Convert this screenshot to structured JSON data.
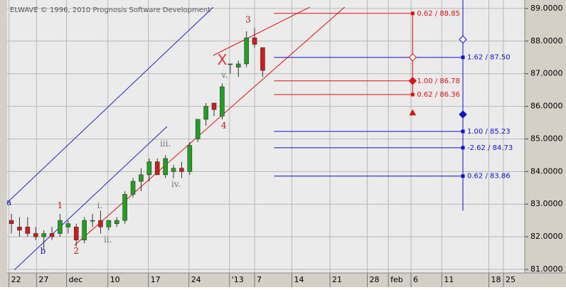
{
  "chart_data": {
    "type": "candlestick",
    "title": "ELWAVE © 1996, 2010 Prognosis Software Development",
    "x": [
      0,
      1,
      2,
      3,
      4,
      5,
      6,
      7,
      8,
      9,
      10,
      11,
      12,
      13,
      14,
      15,
      16,
      17,
      18,
      19,
      20,
      21,
      22,
      23,
      24,
      25,
      26,
      27,
      28,
      29,
      30,
      31
    ],
    "open": [
      82.5,
      82.3,
      82.3,
      82.1,
      82.0,
      82.1,
      82.1,
      82.3,
      82.3,
      81.9,
      82.5,
      82.5,
      82.3,
      82.4,
      82.5,
      83.3,
      83.7,
      83.9,
      84.3,
      83.9,
      84.0,
      84.1,
      84.0,
      85.0,
      85.6,
      86.1,
      85.7,
      87.3,
      87.2,
      87.3,
      88.1,
      87.8
    ],
    "high": [
      82.7,
      82.6,
      82.6,
      82.3,
      82.2,
      82.3,
      82.7,
      82.5,
      82.4,
      82.6,
      82.7,
      82.8,
      82.5,
      82.6,
      83.4,
      83.8,
      84.1,
      84.4,
      84.4,
      84.5,
      84.2,
      84.3,
      84.9,
      85.6,
      86.1,
      86.1,
      86.7,
      87.3,
      87.4,
      88.3,
      88.4,
      87.8
    ],
    "low": [
      82.1,
      82.0,
      82.0,
      81.9,
      81.6,
      81.9,
      82.0,
      82.1,
      81.7,
      81.8,
      82.3,
      82.1,
      82.2,
      82.3,
      82.4,
      83.2,
      83.4,
      83.7,
      83.9,
      83.8,
      83.8,
      83.8,
      83.9,
      84.9,
      85.4,
      85.7,
      85.6,
      87.0,
      86.9,
      87.2,
      87.8,
      86.9
    ],
    "close": [
      82.4,
      82.2,
      82.1,
      82.0,
      82.1,
      82.0,
      82.5,
      82.4,
      81.9,
      82.5,
      82.5,
      82.3,
      82.5,
      82.5,
      83.3,
      83.7,
      83.9,
      84.3,
      83.9,
      84.4,
      84.1,
      84.0,
      84.8,
      85.6,
      86.0,
      85.9,
      86.6,
      87.3,
      87.3,
      88.1,
      87.9,
      87.1
    ],
    "up_color": "#1fa11f",
    "down_color": "#d11a1a",
    "xlim": [
      -0.53,
      63.33
    ],
    "ylim": [
      80.89,
      89.26
    ],
    "grid": true,
    "yticks": [
      {
        "value": 81,
        "label": "81.0000"
      },
      {
        "value": 82,
        "label": "82.0000"
      },
      {
        "value": 83,
        "label": "83.0000"
      },
      {
        "value": 84,
        "label": "84.0000"
      },
      {
        "value": 85,
        "label": "85.0000"
      },
      {
        "value": 86,
        "label": "86.0000"
      },
      {
        "value": 87,
        "label": "87.0000"
      },
      {
        "value": 88,
        "label": "88.0000"
      },
      {
        "value": 89,
        "label": "89.0000"
      }
    ],
    "xticks": [
      {
        "value": -0.3,
        "label": "22"
      },
      {
        "value": 3.1,
        "label": "27"
      },
      {
        "value": 6.8,
        "label": "dec"
      },
      {
        "value": 11.9,
        "label": "10"
      },
      {
        "value": 16.9,
        "label": "17"
      },
      {
        "value": 21.9,
        "label": "24"
      },
      {
        "value": 26.9,
        "label": "'13"
      },
      {
        "value": 30.0,
        "label": "7"
      },
      {
        "value": 34.6,
        "label": "14"
      },
      {
        "value": 39.3,
        "label": "21"
      },
      {
        "value": 43.9,
        "label": "28"
      },
      {
        "value": 46.5,
        "label": "feb"
      },
      {
        "value": 49.3,
        "label": "6"
      },
      {
        "value": 53.1,
        "label": "11"
      },
      {
        "value": 58.9,
        "label": "18"
      },
      {
        "value": 60.7,
        "label": "25"
      }
    ],
    "levels": [
      {
        "label": "0.62 / 88.85",
        "value": 88.85,
        "color": "#dd1111",
        "x": [
          32.4,
          49.5
        ]
      },
      {
        "label": "1.62 / 87.50",
        "value": 87.5,
        "color": "#1111cc",
        "x": [
          32.4,
          55.7
        ]
      },
      {
        "label": "1.00 / 86.78",
        "value": 86.78,
        "color": "#dd1111",
        "x": [
          32.4,
          49.5
        ]
      },
      {
        "label": "0.62 / 86.36",
        "value": 86.36,
        "color": "#dd1111",
        "x": [
          32.4,
          49.5
        ]
      },
      {
        "label": "1.00 / 85.23",
        "value": 85.23,
        "color": "#1111cc",
        "x": [
          32.4,
          55.7
        ]
      },
      {
        "label": "-2.62 / 84.73",
        "value": 84.73,
        "color": "#1111cc",
        "x": [
          32.4,
          55.7
        ]
      },
      {
        "label": "0.62 / 83.86",
        "value": 83.86,
        "color": "#1111cc",
        "x": [
          32.4,
          55.7
        ]
      }
    ],
    "projections": [
      {
        "x": 49.5,
        "range": [
          86.36,
          88.85
        ],
        "color": "#dd1111",
        "markers": [
          {
            "value": 87.5,
            "shape": "hollow-diamond"
          },
          {
            "value": 86.78,
            "shape": "diamond"
          },
          {
            "value": 85.8,
            "shape": "triangle"
          }
        ]
      },
      {
        "x": 55.7,
        "range": [
          82.8,
          89.26
        ],
        "color": "#1111cc",
        "markers": [
          {
            "value": 88.05,
            "shape": "hollow-diamond"
          },
          {
            "value": 85.75,
            "shape": "diamond"
          }
        ]
      }
    ],
    "trendlines": [
      {
        "color": "#2222cc",
        "x": [
          -0.5,
          24.9
        ],
        "y": [
          83.05,
          89.04
        ]
      },
      {
        "color": "#2222cc",
        "x": [
          0.35,
          19.2
        ],
        "y": [
          80.98,
          85.38
        ]
      },
      {
        "color": "#dd1111",
        "x": [
          24.9,
          36.8
        ],
        "y": [
          87.56,
          89.04
        ]
      },
      {
        "color": "#dd1111",
        "x": [
          7.8,
          41.1
        ],
        "y": [
          81.74,
          89.04
        ]
      }
    ],
    "annotations": [
      {
        "text": "a",
        "x": -0.3,
        "y": 83.05,
        "color": "#1111cc"
      },
      {
        "text": "b",
        "x": 3.9,
        "y": 81.55,
        "color": "#1111cc"
      },
      {
        "text": "1",
        "x": 6.0,
        "y": 82.95,
        "color": "#cc1111"
      },
      {
        "text": "2",
        "x": 8.0,
        "y": 81.55,
        "color": "#cc1111"
      },
      {
        "text": "i.",
        "x": 10.9,
        "y": 82.95,
        "color": "#777777"
      },
      {
        "text": "ii.",
        "x": 11.9,
        "y": 81.9,
        "color": "#777777"
      },
      {
        "text": "iii.",
        "x": 19.0,
        "y": 84.85,
        "color": "#777777"
      },
      {
        "text": "iv.",
        "x": 20.3,
        "y": 83.6,
        "color": "#777777"
      },
      {
        "text": "v.",
        "x": 26.3,
        "y": 86.95,
        "color": "#777777"
      },
      {
        "text": "X",
        "x": 26.0,
        "y": 87.4,
        "color": "#dd3333"
      },
      {
        "text": "3",
        "x": 29.2,
        "y": 88.65,
        "color": "#cc1111"
      },
      {
        "text": "4",
        "x": 26.2,
        "y": 85.4,
        "color": "#cc1111"
      }
    ]
  }
}
